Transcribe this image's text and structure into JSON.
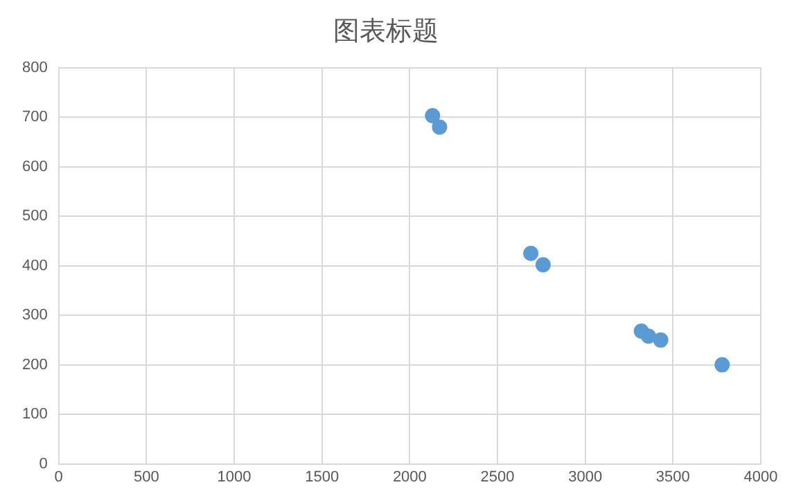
{
  "chart_data": {
    "type": "scatter",
    "title": "图表标题",
    "x": [
      2130,
      2170,
      2690,
      2760,
      3320,
      3360,
      3430,
      3780
    ],
    "values": [
      703,
      680,
      425,
      402,
      268,
      258,
      250,
      200
    ],
    "color": "#5b9bd5",
    "marker": "circle",
    "xlim": [
      0,
      4000
    ],
    "xticks": [
      0,
      500,
      1000,
      1500,
      2000,
      2500,
      3000,
      3500,
      4000
    ],
    "ylim": [
      0,
      800
    ],
    "yticks": [
      0,
      100,
      200,
      300,
      400,
      500,
      600,
      700,
      800
    ],
    "grid": true,
    "legend": false
  }
}
